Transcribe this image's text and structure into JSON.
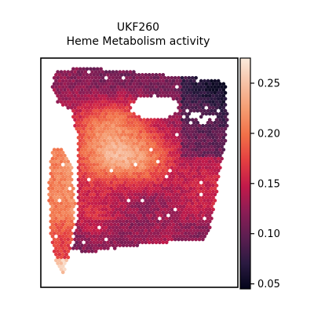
{
  "chart_data": {
    "type": "heatmap",
    "title": [
      "UKF260",
      "Heme Metabolism activity"
    ],
    "xlabel": "",
    "ylabel": "",
    "x_ticks": false,
    "y_ticks": false,
    "colormap": "rocket",
    "colorbar": {
      "range": [
        0.045,
        0.275
      ],
      "ticks": [
        0.05,
        0.1,
        0.15,
        0.2,
        0.25
      ],
      "tick_labels": [
        "0.05",
        "0.10",
        "0.15",
        "0.20",
        "0.25"
      ],
      "placement": "right"
    },
    "regions": [
      {
        "name": "left strip",
        "approx_value": 0.19
      },
      {
        "name": "main tissue body",
        "approx_value": 0.13
      },
      {
        "name": "upper-right area",
        "approx_value": 0.08
      }
    ]
  },
  "colors": {
    "cmap_stops": [
      "#03051a",
      "#2b1a41",
      "#5c1e51",
      "#8c1d55",
      "#c21a4a",
      "#e43f41",
      "#f17048",
      "#f59c71",
      "#f7c1a5",
      "#faebdd"
    ]
  }
}
